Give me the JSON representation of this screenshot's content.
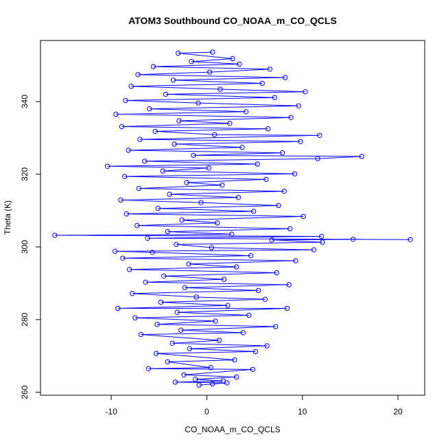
{
  "chart_data": {
    "type": "scatter",
    "title": "ATOM3 Southbound CO_NOAA_m_CO_QCLS",
    "xlabel": "CO_NOAA_m_CO_QCLS",
    "ylabel": "Theta (K)",
    "xlim": [
      -17.4,
      22.8
    ],
    "ylim": [
      259.2,
      356.8
    ],
    "x_ticks": [
      -10,
      0,
      10,
      20
    ],
    "y_ticks": [
      260,
      280,
      300,
      320,
      340
    ],
    "x_tick_labels": [
      "-10",
      "0",
      "10",
      "20"
    ],
    "y_tick_labels": [
      "260",
      "280",
      "300",
      "320",
      "340"
    ],
    "grid": false,
    "legend": "none",
    "colors": {
      "series": "#0000ff",
      "axes": "#000000",
      "background": "#ffffff"
    },
    "series": [
      {
        "marker": "open-circle",
        "connected": true,
        "points": [
          [
            -0.8,
            262.0
          ],
          [
            0.6,
            262.3
          ],
          [
            2.1,
            262.6
          ],
          [
            -3.3,
            262.8
          ],
          [
            1.7,
            263.1
          ],
          [
            -1.2,
            263.6
          ],
          [
            3.1,
            264.2
          ],
          [
            -2.4,
            264.8
          ],
          [
            4.8,
            266.3
          ],
          [
            -6.1,
            266.5
          ],
          [
            0.4,
            266.8
          ],
          [
            -4.1,
            268.4
          ],
          [
            2.9,
            268.9
          ],
          [
            -5.3,
            270.7
          ],
          [
            5.1,
            271.2
          ],
          [
            -1.8,
            272.0
          ],
          [
            6.3,
            272.8
          ],
          [
            -3.6,
            273.5
          ],
          [
            1.3,
            274.3
          ],
          [
            -6.9,
            275.9
          ],
          [
            3.8,
            276.4
          ],
          [
            -2.7,
            277.1
          ],
          [
            7.2,
            278.1
          ],
          [
            -5.2,
            278.7
          ],
          [
            0.9,
            279.6
          ],
          [
            -7.5,
            280.5
          ],
          [
            4.4,
            281.2
          ],
          [
            -3.1,
            282.0
          ],
          [
            8.4,
            283.1
          ],
          [
            -9.3,
            283.1
          ],
          [
            2.2,
            283.9
          ],
          [
            -4.8,
            284.8
          ],
          [
            6.1,
            285.6
          ],
          [
            -1.1,
            286.2
          ],
          [
            -7.8,
            287.2
          ],
          [
            5.4,
            288.0
          ],
          [
            -2.3,
            288.8
          ],
          [
            8.6,
            289.6
          ],
          [
            -6.4,
            290.3
          ],
          [
            1.8,
            291.1
          ],
          [
            -4.5,
            292.0
          ],
          [
            7.3,
            292.9
          ],
          [
            -8.1,
            293.8
          ],
          [
            3.1,
            294.5
          ],
          [
            -1.9,
            295.3
          ],
          [
            9.3,
            296.2
          ],
          [
            -8.8,
            296.9
          ],
          [
            4.6,
            297.6
          ],
          [
            -5.7,
            298.5
          ],
          [
            -9.6,
            298.8
          ],
          [
            11.2,
            299.2
          ],
          [
            0.5,
            299.8
          ],
          [
            -3.2,
            300.7
          ],
          [
            12.1,
            301.3
          ],
          [
            6.8,
            301.9
          ],
          [
            15.3,
            302.1
          ],
          [
            21.3,
            302.0
          ],
          [
            -6.2,
            302.4
          ],
          [
            12.0,
            302.9
          ],
          [
            -15.9,
            303.2
          ],
          [
            2.6,
            303.5
          ],
          [
            -4.1,
            304.2
          ],
          [
            8.7,
            305.0
          ],
          [
            -7.3,
            305.9
          ],
          [
            1.1,
            306.6
          ],
          [
            -2.6,
            307.4
          ],
          [
            10.1,
            308.4
          ],
          [
            -8.4,
            309.1
          ],
          [
            4.9,
            309.8
          ],
          [
            -5.1,
            310.6
          ],
          [
            7.5,
            311.4
          ],
          [
            -0.6,
            312.2
          ],
          [
            -9.0,
            312.9
          ],
          [
            3.3,
            313.6
          ],
          [
            -3.9,
            314.5
          ],
          [
            8.1,
            315.3
          ],
          [
            -7.1,
            316.1
          ],
          [
            1.6,
            317.0
          ],
          [
            -2.1,
            317.7
          ],
          [
            6.2,
            318.6
          ],
          [
            -8.6,
            319.4
          ],
          [
            9.2,
            320.1
          ],
          [
            -4.6,
            320.9
          ],
          [
            0.2,
            321.7
          ],
          [
            -10.4,
            322.2
          ],
          [
            5.3,
            322.8
          ],
          [
            -6.5,
            323.6
          ],
          [
            11.6,
            324.3
          ],
          [
            16.2,
            324.9
          ],
          [
            -1.4,
            325.2
          ],
          [
            7.9,
            325.9
          ],
          [
            -8.2,
            326.6
          ],
          [
            3.7,
            327.4
          ],
          [
            -3.4,
            328.3
          ],
          [
            9.8,
            329.0
          ],
          [
            -7.0,
            329.6
          ],
          [
            11.8,
            330.7
          ],
          [
            0.8,
            330.9
          ],
          [
            -5.4,
            331.8
          ],
          [
            6.4,
            332.5
          ],
          [
            -8.9,
            333.1
          ],
          [
            2.4,
            334.0
          ],
          [
            -2.9,
            334.7
          ],
          [
            8.8,
            335.6
          ],
          [
            -9.5,
            336.5
          ],
          [
            4.1,
            337.2
          ],
          [
            -6.0,
            338.0
          ],
          [
            9.6,
            338.8
          ],
          [
            -0.9,
            339.6
          ],
          [
            -8.5,
            340.3
          ],
          [
            7.1,
            341.1
          ],
          [
            -4.3,
            342.0
          ],
          [
            10.3,
            342.7
          ],
          [
            1.4,
            343.4
          ],
          [
            -7.9,
            344.2
          ],
          [
            5.8,
            345.0
          ],
          [
            -3.5,
            345.9
          ],
          [
            8.2,
            346.6
          ],
          [
            -7.2,
            347.4
          ],
          [
            0.3,
            348.1
          ],
          [
            6.6,
            348.9
          ],
          [
            -5.6,
            349.6
          ],
          [
            3.4,
            350.3
          ],
          [
            -1.6,
            351.0
          ],
          [
            2.7,
            351.8
          ],
          [
            -3.0,
            353.3
          ],
          [
            0.6,
            353.6
          ]
        ]
      }
    ]
  }
}
